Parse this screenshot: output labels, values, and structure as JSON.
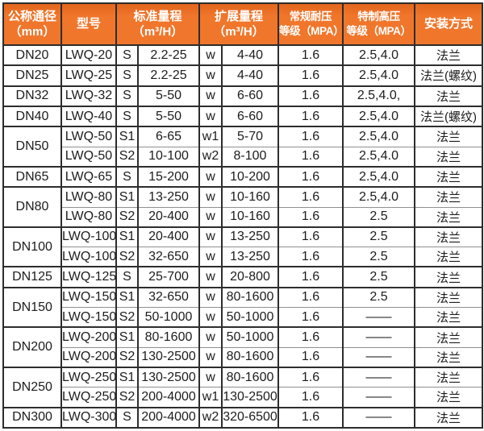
{
  "style": {
    "accent": "#f0762b",
    "header_text": "#ffffff",
    "border": "#2d2d2d",
    "inner_border": "#8f8f8f",
    "text": "#1c1c1c",
    "cell_background": "#ffffff"
  },
  "chart_data": {
    "type": "table",
    "title": "",
    "columns": [
      "公称通径（mm）",
      "型号",
      "标准量程（m³/H）",
      "扩展量程（m³/H）",
      "常规耐压等级（MPA）",
      "特制高压等级（MPA）",
      "安装方式"
    ],
    "header": {
      "diameter": "公称通径\n（mm）",
      "model": "型号",
      "standard_range": "标准量程\n（m³/H）",
      "extended_range": "扩展量程\n（m³/H）",
      "normal_pressure": "常规耐压\n等级（MPA）",
      "special_pressure": "特制高压\n等级（MPA）",
      "installation": "安装方式"
    },
    "groups": [
      {
        "diameter": "DN20",
        "rows": [
          [
            "LWQ-20",
            "S",
            "2.2-25",
            "w",
            "4-40",
            "1.6",
            "2.5,4.0",
            "法兰"
          ]
        ]
      },
      {
        "diameter": "DN25",
        "rows": [
          [
            "LWQ-25",
            "S",
            "2.2-25",
            "w",
            "4-40",
            "1.6",
            "2.5,4.0",
            "法兰(螺纹)"
          ]
        ]
      },
      {
        "diameter": "DN32",
        "rows": [
          [
            "LWQ-32",
            "S",
            "5-50",
            "w",
            "6-60",
            "1.6",
            "2.5,4.0,",
            "法兰"
          ]
        ]
      },
      {
        "diameter": "DN40",
        "rows": [
          [
            "LWQ-40",
            "S",
            "5-50",
            "w",
            "6-60",
            "1.6",
            "2.5,4.0",
            "法兰(螺纹)"
          ]
        ]
      },
      {
        "diameter": "DN50",
        "rows": [
          [
            "LWQ-50",
            "S1",
            "6-65",
            "w1",
            "5-70",
            "1.6",
            "2.5,4.0",
            "法兰"
          ],
          [
            "LWQ-50",
            "S2",
            "10-100",
            "w2",
            "8-100",
            "1.6",
            "2.5,4.0",
            "法兰"
          ]
        ]
      },
      {
        "diameter": "DN65",
        "rows": [
          [
            "LWQ-65",
            "S",
            "15-200",
            "w",
            "10-200",
            "1.6",
            "2.5,4.0",
            "法兰"
          ]
        ]
      },
      {
        "diameter": "DN80",
        "rows": [
          [
            "LWQ-80",
            "S1",
            "13-250",
            "w",
            "10-160",
            "1.6",
            "2.5,4.0",
            "法兰"
          ],
          [
            "LWQ-80",
            "S2",
            "20-400",
            "w",
            "10-160",
            "1.6",
            "2.5",
            "法兰"
          ]
        ]
      },
      {
        "diameter": "DN100",
        "rows": [
          [
            "LWQ-100",
            "S1",
            "20-400",
            "w",
            "13-250",
            "1.6",
            "2.5",
            "法兰"
          ],
          [
            "LWQ-100",
            "S2",
            "32-650",
            "w",
            "13-250",
            "1.6",
            "2.5",
            "法兰"
          ]
        ]
      },
      {
        "diameter": "DN125",
        "rows": [
          [
            "LWQ-125",
            "S",
            "25-700",
            "w",
            "20-800",
            "1.6",
            "2.5",
            "法兰"
          ]
        ]
      },
      {
        "diameter": "DN150",
        "rows": [
          [
            "LWQ-150",
            "S1",
            "32-650",
            "w",
            "80-1600",
            "1.6",
            "2.5",
            "法兰"
          ],
          [
            "LWQ-150",
            "S2",
            "50-1000",
            "w",
            "50-1000",
            "1.6",
            "——",
            "法兰"
          ]
        ]
      },
      {
        "diameter": "DN200",
        "rows": [
          [
            "LWQ-200",
            "S1",
            "80-1600",
            "w",
            "50-1000",
            "1.6",
            "——",
            "法兰"
          ],
          [
            "LWQ-200",
            "S2",
            "130-2500",
            "w",
            "80-1600",
            "1.6",
            "——",
            "法兰"
          ]
        ]
      },
      {
        "diameter": "DN250",
        "rows": [
          [
            "LWQ-250",
            "S1",
            "130-2500",
            "w",
            "80-1600",
            "1.6",
            "——",
            "法兰"
          ],
          [
            "LWQ-250",
            "S2",
            "200-4000",
            "w1",
            "130-2500",
            "1.6",
            "——",
            "法兰"
          ]
        ]
      },
      {
        "diameter": "DN300",
        "rows": [
          [
            "LWQ-300",
            "S",
            "200-4000",
            "w2",
            "320-6500",
            "1.6",
            "——",
            "法兰"
          ]
        ]
      }
    ]
  }
}
